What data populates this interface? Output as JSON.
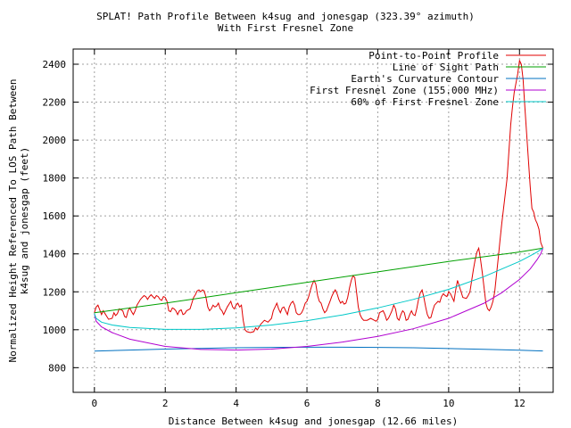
{
  "chart_data": {
    "type": "line",
    "title_line1": "SPLAT! Path Profile Between k4sug and jonesgap (323.39° azimuth)",
    "title_line2": "With First Fresnel Zone",
    "xlabel": "Distance Between k4sug and jonesgap (12.66 miles)",
    "ylabel_line1": "Normalized Height Referenced To LOS Path Between",
    "ylabel_line2": "k4sug and jonesgap (feet)",
    "xlim": [
      -0.6,
      12.95
    ],
    "ylim": [
      670,
      2480
    ],
    "xticks": [
      0,
      2,
      4,
      6,
      8,
      10,
      12
    ],
    "yticks": [
      800,
      1000,
      1200,
      1400,
      1600,
      1800,
      2000,
      2200,
      2400
    ],
    "grid": true,
    "legend_position": "top-right",
    "series": [
      {
        "name": "Point-to-Point Profile",
        "color": "#e00000",
        "points": [
          [
            0.0,
            1090
          ],
          [
            0.05,
            1120
          ],
          [
            0.1,
            1130
          ],
          [
            0.15,
            1105
          ],
          [
            0.2,
            1080
          ],
          [
            0.25,
            1100
          ],
          [
            0.3,
            1085
          ],
          [
            0.4,
            1055
          ],
          [
            0.5,
            1060
          ],
          [
            0.55,
            1090
          ],
          [
            0.6,
            1075
          ],
          [
            0.65,
            1085
          ],
          [
            0.7,
            1110
          ],
          [
            0.8,
            1100
          ],
          [
            0.85,
            1070
          ],
          [
            0.9,
            1065
          ],
          [
            0.95,
            1100
          ],
          [
            1.0,
            1115
          ],
          [
            1.05,
            1095
          ],
          [
            1.1,
            1080
          ],
          [
            1.15,
            1100
          ],
          [
            1.2,
            1130
          ],
          [
            1.25,
            1145
          ],
          [
            1.3,
            1160
          ],
          [
            1.35,
            1170
          ],
          [
            1.4,
            1180
          ],
          [
            1.45,
            1175
          ],
          [
            1.5,
            1160
          ],
          [
            1.55,
            1175
          ],
          [
            1.6,
            1185
          ],
          [
            1.65,
            1175
          ],
          [
            1.7,
            1165
          ],
          [
            1.75,
            1180
          ],
          [
            1.8,
            1175
          ],
          [
            1.85,
            1160
          ],
          [
            1.9,
            1155
          ],
          [
            1.95,
            1175
          ],
          [
            2.0,
            1170
          ],
          [
            2.05,
            1150
          ],
          [
            2.1,
            1100
          ],
          [
            2.15,
            1095
          ],
          [
            2.2,
            1115
          ],
          [
            2.25,
            1110
          ],
          [
            2.3,
            1100
          ],
          [
            2.35,
            1080
          ],
          [
            2.4,
            1100
          ],
          [
            2.45,
            1105
          ],
          [
            2.5,
            1080
          ],
          [
            2.55,
            1085
          ],
          [
            2.6,
            1100
          ],
          [
            2.7,
            1110
          ],
          [
            2.75,
            1140
          ],
          [
            2.8,
            1170
          ],
          [
            2.85,
            1185
          ],
          [
            2.9,
            1205
          ],
          [
            2.95,
            1210
          ],
          [
            3.0,
            1200
          ],
          [
            3.05,
            1210
          ],
          [
            3.1,
            1205
          ],
          [
            3.15,
            1170
          ],
          [
            3.2,
            1120
          ],
          [
            3.25,
            1100
          ],
          [
            3.3,
            1110
          ],
          [
            3.35,
            1130
          ],
          [
            3.4,
            1120
          ],
          [
            3.45,
            1125
          ],
          [
            3.5,
            1140
          ],
          [
            3.55,
            1110
          ],
          [
            3.6,
            1100
          ],
          [
            3.65,
            1080
          ],
          [
            3.7,
            1100
          ],
          [
            3.75,
            1120
          ],
          [
            3.8,
            1135
          ],
          [
            3.85,
            1150
          ],
          [
            3.9,
            1120
          ],
          [
            3.95,
            1110
          ],
          [
            4.0,
            1130
          ],
          [
            4.05,
            1140
          ],
          [
            4.1,
            1120
          ],
          [
            4.15,
            1130
          ],
          [
            4.2,
            1050
          ],
          [
            4.25,
            1000
          ],
          [
            4.3,
            990
          ],
          [
            4.4,
            985
          ],
          [
            4.5,
            990
          ],
          [
            4.55,
            1010
          ],
          [
            4.6,
            1000
          ],
          [
            4.7,
            1030
          ],
          [
            4.8,
            1050
          ],
          [
            4.9,
            1040
          ],
          [
            5.0,
            1060
          ],
          [
            5.05,
            1100
          ],
          [
            5.1,
            1120
          ],
          [
            5.15,
            1140
          ],
          [
            5.2,
            1110
          ],
          [
            5.25,
            1090
          ],
          [
            5.3,
            1115
          ],
          [
            5.35,
            1120
          ],
          [
            5.4,
            1100
          ],
          [
            5.45,
            1080
          ],
          [
            5.5,
            1120
          ],
          [
            5.55,
            1140
          ],
          [
            5.6,
            1150
          ],
          [
            5.65,
            1130
          ],
          [
            5.7,
            1090
          ],
          [
            5.75,
            1080
          ],
          [
            5.8,
            1080
          ],
          [
            5.85,
            1090
          ],
          [
            5.9,
            1110
          ],
          [
            5.95,
            1140
          ],
          [
            6.0,
            1150
          ],
          [
            6.05,
            1175
          ],
          [
            6.1,
            1210
          ],
          [
            6.15,
            1240
          ],
          [
            6.2,
            1260
          ],
          [
            6.25,
            1240
          ],
          [
            6.3,
            1180
          ],
          [
            6.35,
            1150
          ],
          [
            6.4,
            1140
          ],
          [
            6.45,
            1110
          ],
          [
            6.5,
            1090
          ],
          [
            6.55,
            1100
          ],
          [
            6.6,
            1125
          ],
          [
            6.65,
            1150
          ],
          [
            6.7,
            1175
          ],
          [
            6.75,
            1195
          ],
          [
            6.8,
            1210
          ],
          [
            6.85,
            1190
          ],
          [
            6.9,
            1160
          ],
          [
            6.95,
            1140
          ],
          [
            7.0,
            1150
          ],
          [
            7.05,
            1135
          ],
          [
            7.1,
            1140
          ],
          [
            7.15,
            1170
          ],
          [
            7.2,
            1220
          ],
          [
            7.25,
            1260
          ],
          [
            7.3,
            1285
          ],
          [
            7.35,
            1275
          ],
          [
            7.4,
            1200
          ],
          [
            7.45,
            1120
          ],
          [
            7.5,
            1080
          ],
          [
            7.55,
            1060
          ],
          [
            7.6,
            1050
          ],
          [
            7.7,
            1050
          ],
          [
            7.8,
            1060
          ],
          [
            7.9,
            1050
          ],
          [
            7.95,
            1045
          ],
          [
            8.0,
            1055
          ],
          [
            8.05,
            1090
          ],
          [
            8.1,
            1095
          ],
          [
            8.15,
            1100
          ],
          [
            8.2,
            1080
          ],
          [
            8.25,
            1050
          ],
          [
            8.3,
            1060
          ],
          [
            8.35,
            1080
          ],
          [
            8.4,
            1100
          ],
          [
            8.45,
            1130
          ],
          [
            8.5,
            1110
          ],
          [
            8.55,
            1060
          ],
          [
            8.6,
            1050
          ],
          [
            8.65,
            1080
          ],
          [
            8.7,
            1100
          ],
          [
            8.75,
            1090
          ],
          [
            8.8,
            1050
          ],
          [
            8.85,
            1055
          ],
          [
            8.9,
            1080
          ],
          [
            8.95,
            1100
          ],
          [
            9.0,
            1080
          ],
          [
            9.05,
            1075
          ],
          [
            9.1,
            1110
          ],
          [
            9.15,
            1160
          ],
          [
            9.2,
            1195
          ],
          [
            9.25,
            1210
          ],
          [
            9.3,
            1170
          ],
          [
            9.35,
            1120
          ],
          [
            9.4,
            1080
          ],
          [
            9.45,
            1060
          ],
          [
            9.5,
            1065
          ],
          [
            9.55,
            1100
          ],
          [
            9.6,
            1130
          ],
          [
            9.7,
            1150
          ],
          [
            9.75,
            1145
          ],
          [
            9.8,
            1175
          ],
          [
            9.85,
            1190
          ],
          [
            9.9,
            1180
          ],
          [
            9.95,
            1175
          ],
          [
            10.0,
            1200
          ],
          [
            10.05,
            1190
          ],
          [
            10.1,
            1170
          ],
          [
            10.15,
            1150
          ],
          [
            10.2,
            1210
          ],
          [
            10.25,
            1260
          ],
          [
            10.3,
            1230
          ],
          [
            10.35,
            1200
          ],
          [
            10.4,
            1170
          ],
          [
            10.5,
            1165
          ],
          [
            10.55,
            1180
          ],
          [
            10.6,
            1200
          ],
          [
            10.65,
            1260
          ],
          [
            10.7,
            1320
          ],
          [
            10.75,
            1370
          ],
          [
            10.8,
            1410
          ],
          [
            10.85,
            1430
          ],
          [
            10.9,
            1370
          ],
          [
            10.95,
            1300
          ],
          [
            11.0,
            1220
          ],
          [
            11.05,
            1140
          ],
          [
            11.1,
            1110
          ],
          [
            11.15,
            1100
          ],
          [
            11.2,
            1120
          ],
          [
            11.25,
            1150
          ],
          [
            11.3,
            1200
          ],
          [
            11.35,
            1290
          ],
          [
            11.4,
            1380
          ],
          [
            11.45,
            1470
          ],
          [
            11.5,
            1560
          ],
          [
            11.55,
            1640
          ],
          [
            11.6,
            1720
          ],
          [
            11.65,
            1800
          ],
          [
            11.7,
            1940
          ],
          [
            11.75,
            2080
          ],
          [
            11.8,
            2170
          ],
          [
            11.85,
            2250
          ],
          [
            11.9,
            2300
          ],
          [
            11.95,
            2350
          ],
          [
            12.0,
            2420
          ],
          [
            12.05,
            2400
          ],
          [
            12.1,
            2320
          ],
          [
            12.15,
            2180
          ],
          [
            12.2,
            2040
          ],
          [
            12.25,
            1900
          ],
          [
            12.3,
            1760
          ],
          [
            12.35,
            1640
          ],
          [
            12.4,
            1620
          ],
          [
            12.45,
            1580
          ],
          [
            12.5,
            1560
          ],
          [
            12.55,
            1530
          ],
          [
            12.6,
            1460
          ],
          [
            12.66,
            1430
          ]
        ]
      },
      {
        "name": "Line of Sight Path",
        "color": "#00a000",
        "points": [
          [
            0,
            1090
          ],
          [
            2,
            1140
          ],
          [
            4,
            1195
          ],
          [
            6,
            1250
          ],
          [
            8,
            1305
          ],
          [
            10,
            1360
          ],
          [
            12,
            1410
          ],
          [
            12.66,
            1430
          ]
        ]
      },
      {
        "name": "Earth's Curvature Contour",
        "color": "#0070c0",
        "points": [
          [
            0,
            887
          ],
          [
            1,
            893
          ],
          [
            2,
            898
          ],
          [
            3,
            902
          ],
          [
            4,
            905
          ],
          [
            5,
            907
          ],
          [
            6,
            908
          ],
          [
            7,
            908
          ],
          [
            8,
            907
          ],
          [
            9,
            905
          ],
          [
            10,
            901
          ],
          [
            11,
            897
          ],
          [
            12,
            892
          ],
          [
            12.66,
            888
          ]
        ]
      },
      {
        "name": "First Fresnel Zone (155.000 MHz)",
        "color": "#b000d0",
        "points": [
          [
            0,
            1085
          ],
          [
            0.05,
            1045
          ],
          [
            0.2,
            1015
          ],
          [
            0.5,
            985
          ],
          [
            1,
            950
          ],
          [
            2,
            912
          ],
          [
            3,
            896
          ],
          [
            4,
            893
          ],
          [
            5,
            898
          ],
          [
            6,
            912
          ],
          [
            7,
            935
          ],
          [
            8,
            965
          ],
          [
            9,
            1005
          ],
          [
            10,
            1060
          ],
          [
            11,
            1140
          ],
          [
            11.5,
            1195
          ],
          [
            12,
            1265
          ],
          [
            12.3,
            1320
          ],
          [
            12.5,
            1370
          ],
          [
            12.6,
            1400
          ],
          [
            12.66,
            1430
          ]
        ]
      },
      {
        "name": "60% of First Fresnel Zone",
        "color": "#00c8c8",
        "points": [
          [
            0,
            1085
          ],
          [
            0.05,
            1060
          ],
          [
            0.2,
            1040
          ],
          [
            0.5,
            1025
          ],
          [
            1,
            1012
          ],
          [
            2,
            1002
          ],
          [
            3,
            1002
          ],
          [
            4,
            1010
          ],
          [
            5,
            1025
          ],
          [
            6,
            1048
          ],
          [
            7,
            1078
          ],
          [
            8,
            1115
          ],
          [
            9,
            1160
          ],
          [
            10,
            1213
          ],
          [
            11,
            1280
          ],
          [
            11.5,
            1320
          ],
          [
            12,
            1360
          ],
          [
            12.3,
            1390
          ],
          [
            12.5,
            1410
          ],
          [
            12.66,
            1430
          ]
        ]
      }
    ]
  }
}
